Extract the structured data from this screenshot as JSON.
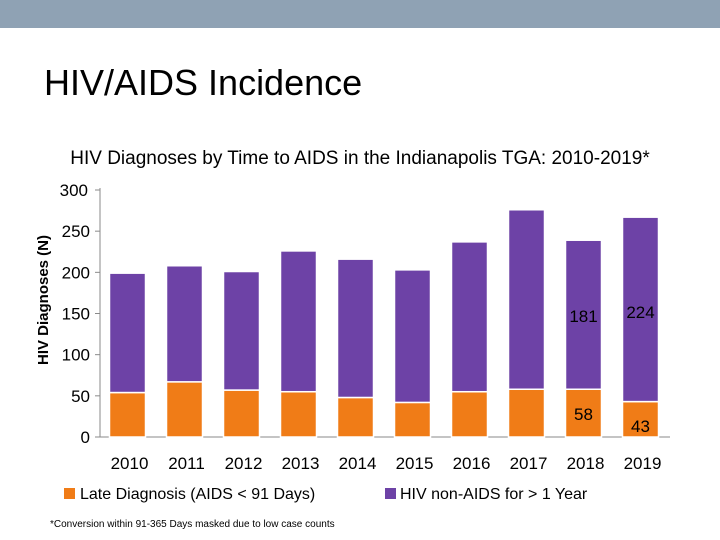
{
  "slide": {
    "title": "HIV/AIDS Incidence",
    "footnote": "*Conversion within 91-365 Days masked due to low case counts"
  },
  "colors": {
    "top_bar": "#8fa2b4",
    "late_diagnosis": "#f07c17",
    "hiv_non_aids": "#6d42a6"
  },
  "chart_data": {
    "type": "bar",
    "stacked": true,
    "title": "HIV Diagnoses by Time to AIDS in the Indianapolis TGA: 2010-2019*",
    "ylabel": "HIV Diagnoses (N)",
    "xlabel": "",
    "ylim": [
      0,
      300
    ],
    "yticks": [
      0,
      50,
      100,
      150,
      200,
      250,
      300
    ],
    "grid": false,
    "legend_position": "bottom",
    "categories": [
      "2010",
      "2011",
      "2012",
      "2013",
      "2014",
      "2015",
      "2016",
      "2017",
      "2018",
      "2019"
    ],
    "series": [
      {
        "name": "Late Diagnosis (AIDS < 91 Days)",
        "color": "#f07c17",
        "values": [
          54,
          67,
          57,
          55,
          48,
          42,
          55,
          58,
          58,
          43
        ],
        "data_labels": {
          "8": "58",
          "9": "43"
        }
      },
      {
        "name": "HIV non-AIDS for > 1 Year",
        "color": "#6d42a6",
        "values": [
          145,
          141,
          144,
          171,
          168,
          161,
          182,
          218,
          181,
          224
        ],
        "data_labels": {
          "8": "181",
          "9": "224"
        }
      }
    ]
  }
}
